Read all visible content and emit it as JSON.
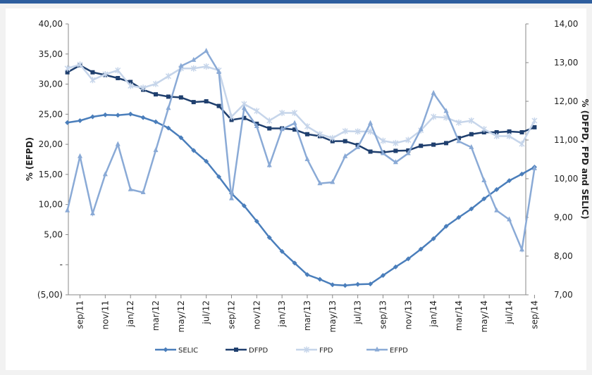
{
  "chart_data": {
    "type": "line",
    "categories": [
      null,
      "sep/11",
      null,
      "nov/11",
      null,
      "jan/12",
      null,
      "mar/12",
      null,
      "may/12",
      null,
      "jul/12",
      null,
      "sep/12",
      null,
      "nov/12",
      null,
      "jan/13",
      null,
      "mar/13",
      null,
      "may/13",
      null,
      "jul/13",
      null,
      "sep/13",
      null,
      "nov/13",
      null,
      "jan/14",
      null,
      "mar/14",
      null,
      "may/14",
      null,
      "jul/14",
      null,
      "sep/14"
    ],
    "y_label": "% (EFPD)",
    "y2_label": "% (DFPD, FPD and SELIC)",
    "ylim": [
      -5,
      40
    ],
    "yticks": [
      {
        "value": -5,
        "label": "(5,00)"
      },
      {
        "value": 0,
        "label": "-"
      },
      {
        "value": 5,
        "label": "5,00"
      },
      {
        "value": 10,
        "label": "10,00"
      },
      {
        "value": 15,
        "label": "15,00"
      },
      {
        "value": 20,
        "label": "20,00"
      },
      {
        "value": 25,
        "label": "25,00"
      },
      {
        "value": 30,
        "label": "30,00"
      },
      {
        "value": 35,
        "label": "35,00"
      },
      {
        "value": 40,
        "label": "40,00"
      }
    ],
    "y2lim": [
      7,
      14
    ],
    "y2ticks": [
      {
        "value": 7,
        "label": "7,00"
      },
      {
        "value": 8,
        "label": "8,00"
      },
      {
        "value": 9,
        "label": "9,00"
      },
      {
        "value": 10,
        "label": "10,00"
      },
      {
        "value": 11,
        "label": "11,00"
      },
      {
        "value": 12,
        "label": "12,00"
      },
      {
        "value": 13,
        "label": "13,00"
      },
      {
        "value": 14,
        "label": "14,00"
      }
    ],
    "legend": "bottom",
    "series": [
      {
        "name": "SELIC",
        "color": "#4a7ebb",
        "marker": "diamond",
        "axis": "y2",
        "values": [
          11.45,
          11.5,
          11.6,
          11.65,
          11.64,
          11.67,
          11.58,
          11.47,
          11.31,
          11.06,
          10.73,
          10.45,
          10.05,
          9.62,
          9.3,
          8.9,
          8.48,
          8.12,
          7.82,
          7.52,
          7.4,
          7.26,
          7.24,
          7.27,
          7.28,
          7.5,
          7.72,
          7.93,
          8.18,
          8.45,
          8.77,
          9.0,
          9.22,
          9.48,
          9.72,
          9.95,
          10.12,
          10.3
        ]
      },
      {
        "name": "DFPD",
        "color": "#1f3f6e",
        "marker": "square",
        "axis": "y2",
        "values": [
          12.75,
          12.93,
          12.75,
          12.68,
          12.6,
          12.5,
          12.3,
          12.18,
          12.12,
          12.1,
          11.98,
          12.0,
          11.88,
          11.52,
          11.57,
          11.42,
          11.3,
          11.3,
          11.27,
          11.15,
          11.1,
          10.97,
          10.97,
          10.87,
          10.7,
          10.68,
          10.72,
          10.73,
          10.85,
          10.88,
          10.92,
          11.05,
          11.15,
          11.2,
          11.2,
          11.22,
          11.2,
          11.33
        ]
      },
      {
        "name": "FPD",
        "color": "#c6d5ea",
        "marker": "cross",
        "axis": "y2",
        "values": [
          12.85,
          12.95,
          12.55,
          12.7,
          12.8,
          12.4,
          12.35,
          12.45,
          12.65,
          12.85,
          12.85,
          12.9,
          12.8,
          11.6,
          11.93,
          11.75,
          11.5,
          11.7,
          11.7,
          11.35,
          11.15,
          11.05,
          11.23,
          11.22,
          11.22,
          10.98,
          10.92,
          11.0,
          11.25,
          11.6,
          11.58,
          11.45,
          11.5,
          11.28,
          11.1,
          11.1,
          10.9,
          11.5
        ]
      },
      {
        "name": "EFPD",
        "color": "#8aaad6",
        "marker": "triangle",
        "values": [
          9,
          18,
          8.5,
          15,
          20,
          12.5,
          12,
          19,
          26,
          33,
          34,
          35.5,
          32,
          11,
          26,
          23,
          16.5,
          22.5,
          23.5,
          17.5,
          13.5,
          13.7,
          18,
          19.5,
          23.5,
          18.5,
          17,
          18.5,
          22.5,
          28.5,
          25.5,
          20.5,
          19.5,
          14,
          9,
          7.5,
          2.5,
          16
        ]
      }
    ]
  }
}
